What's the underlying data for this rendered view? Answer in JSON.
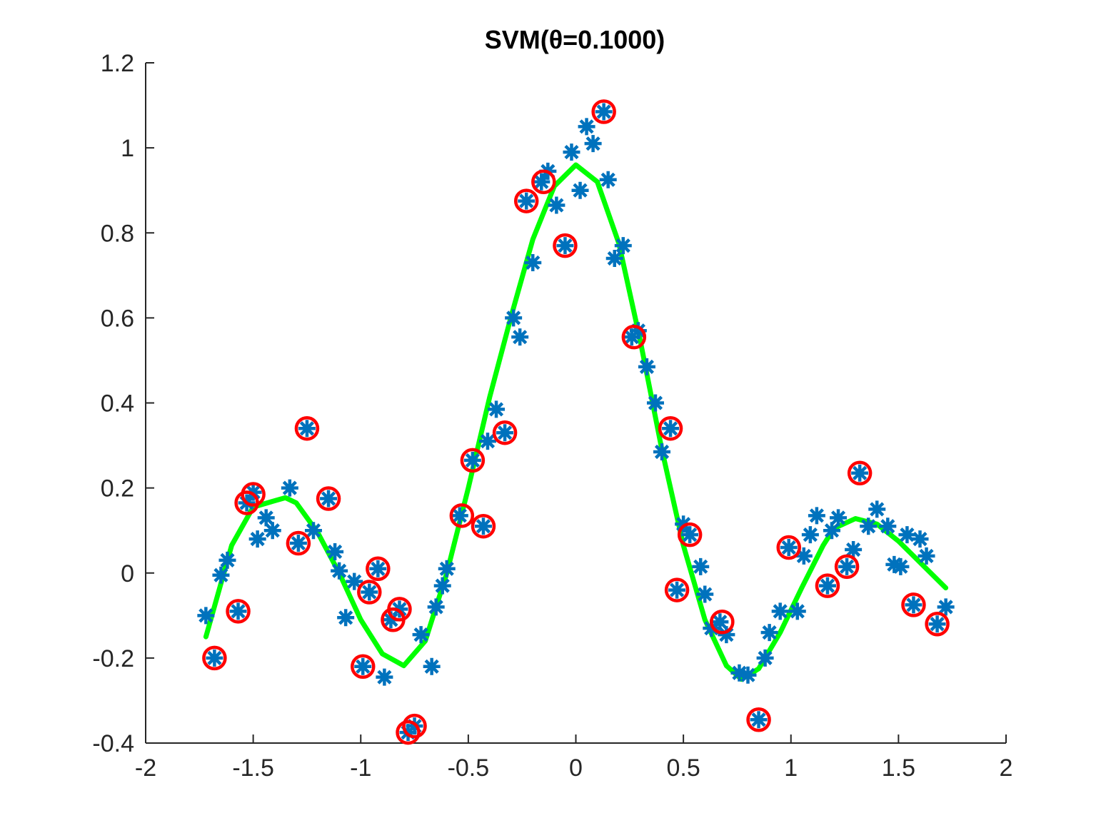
{
  "chart_data": {
    "type": "scatter",
    "title": "SVM(θ=0.1000)",
    "xlabel": "",
    "ylabel": "",
    "xlim": [
      -2,
      2
    ],
    "ylim": [
      -0.4,
      1.2
    ],
    "xticks": [
      -2,
      -1.5,
      -1,
      -0.5,
      0,
      0.5,
      1,
      1.5,
      2
    ],
    "xtick_labels": [
      "-2",
      "-1.5",
      "-1",
      "-0.5",
      "0",
      "0.5",
      "1",
      "1.5",
      "2"
    ],
    "yticks": [
      -0.4,
      -0.2,
      0,
      0.2,
      0.4,
      0.6,
      0.8,
      1,
      1.2
    ],
    "ytick_labels": [
      "-0.4",
      "-0.2",
      "0",
      "0.2",
      "0.4",
      "0.6",
      "0.8",
      "1",
      "1.2"
    ],
    "grid": false,
    "colors": {
      "data_points": "#0072BD",
      "support_vectors": "#FF0000",
      "fit_curve": "#00FF00",
      "axes": "#262626"
    },
    "series": [
      {
        "marker": "asterisk",
        "points": [
          [
            -1.72,
            -0.1
          ],
          [
            -1.68,
            -0.2
          ],
          [
            -1.65,
            -0.005
          ],
          [
            -1.62,
            0.03
          ],
          [
            -1.57,
            -0.09
          ],
          [
            -1.53,
            0.165
          ],
          [
            -1.5,
            0.19
          ],
          [
            -1.48,
            0.08
          ],
          [
            -1.44,
            0.13
          ],
          [
            -1.41,
            0.1
          ],
          [
            -1.33,
            0.2
          ],
          [
            -1.29,
            0.07
          ],
          [
            -1.25,
            0.34
          ],
          [
            -1.22,
            0.1
          ],
          [
            -1.15,
            0.175
          ],
          [
            -1.12,
            0.05
          ],
          [
            -1.1,
            0.005
          ],
          [
            -1.07,
            -0.105
          ],
          [
            -1.03,
            -0.02
          ],
          [
            -0.99,
            -0.22
          ],
          [
            -0.96,
            -0.045
          ],
          [
            -0.92,
            0.01
          ],
          [
            -0.89,
            -0.245
          ],
          [
            -0.86,
            -0.11
          ],
          [
            -0.82,
            -0.085
          ],
          [
            -0.78,
            -0.375
          ],
          [
            -0.75,
            -0.36
          ],
          [
            -0.72,
            -0.145
          ],
          [
            -0.67,
            -0.22
          ],
          [
            -0.65,
            -0.08
          ],
          [
            -0.62,
            -0.03
          ],
          [
            -0.6,
            0.01
          ],
          [
            -0.54,
            0.135
          ],
          [
            -0.48,
            0.265
          ],
          [
            -0.43,
            0.11
          ],
          [
            -0.41,
            0.31
          ],
          [
            -0.37,
            0.385
          ],
          [
            -0.33,
            0.33
          ],
          [
            -0.29,
            0.6
          ],
          [
            -0.26,
            0.555
          ],
          [
            -0.23,
            0.875
          ],
          [
            -0.2,
            0.73
          ],
          [
            -0.16,
            0.92
          ],
          [
            -0.13,
            0.945
          ],
          [
            -0.09,
            0.865
          ],
          [
            -0.05,
            0.77
          ],
          [
            -0.02,
            0.99
          ],
          [
            0.02,
            0.9
          ],
          [
            0.05,
            1.05
          ],
          [
            0.08,
            1.01
          ],
          [
            0.13,
            1.085
          ],
          [
            0.15,
            0.925
          ],
          [
            0.18,
            0.74
          ],
          [
            0.22,
            0.77
          ],
          [
            0.26,
            0.555
          ],
          [
            0.29,
            0.57
          ],
          [
            0.33,
            0.485
          ],
          [
            0.37,
            0.4
          ],
          [
            0.4,
            0.285
          ],
          [
            0.44,
            0.34
          ],
          [
            0.47,
            -0.04
          ],
          [
            0.5,
            0.115
          ],
          [
            0.53,
            0.09
          ],
          [
            0.58,
            0.015
          ],
          [
            0.6,
            -0.05
          ],
          [
            0.63,
            -0.13
          ],
          [
            0.67,
            -0.115
          ],
          [
            0.7,
            -0.145
          ],
          [
            0.76,
            -0.235
          ],
          [
            0.8,
            -0.24
          ],
          [
            0.85,
            -0.345
          ],
          [
            0.88,
            -0.2
          ],
          [
            0.9,
            -0.14
          ],
          [
            0.95,
            -0.09
          ],
          [
            0.99,
            0.06
          ],
          [
            1.03,
            -0.09
          ],
          [
            1.06,
            0.04
          ],
          [
            1.09,
            0.09
          ],
          [
            1.12,
            0.135
          ],
          [
            1.17,
            -0.03
          ],
          [
            1.19,
            0.1
          ],
          [
            1.22,
            0.13
          ],
          [
            1.26,
            0.015
          ],
          [
            1.29,
            0.055
          ],
          [
            1.32,
            0.235
          ],
          [
            1.36,
            0.11
          ],
          [
            1.4,
            0.15
          ],
          [
            1.45,
            0.11
          ],
          [
            1.48,
            0.02
          ],
          [
            1.51,
            0.015
          ],
          [
            1.54,
            0.09
          ],
          [
            1.57,
            -0.075
          ],
          [
            1.6,
            0.08
          ],
          [
            1.63,
            0.04
          ],
          [
            1.68,
            -0.12
          ],
          [
            1.72,
            -0.08
          ]
        ]
      },
      {
        "marker": "circle",
        "points": [
          [
            -1.68,
            -0.2
          ],
          [
            -1.57,
            -0.09
          ],
          [
            -1.53,
            0.165
          ],
          [
            -1.5,
            0.185
          ],
          [
            -1.29,
            0.07
          ],
          [
            -1.25,
            0.34
          ],
          [
            -1.15,
            0.175
          ],
          [
            -0.99,
            -0.22
          ],
          [
            -0.96,
            -0.045
          ],
          [
            -0.92,
            0.01
          ],
          [
            -0.85,
            -0.11
          ],
          [
            -0.82,
            -0.085
          ],
          [
            -0.78,
            -0.375
          ],
          [
            -0.75,
            -0.36
          ],
          [
            -0.53,
            0.135
          ],
          [
            -0.48,
            0.265
          ],
          [
            -0.43,
            0.11
          ],
          [
            -0.33,
            0.33
          ],
          [
            -0.23,
            0.875
          ],
          [
            -0.15,
            0.92
          ],
          [
            -0.05,
            0.77
          ],
          [
            0.13,
            1.085
          ],
          [
            0.27,
            0.555
          ],
          [
            0.44,
            0.34
          ],
          [
            0.47,
            -0.04
          ],
          [
            0.53,
            0.09
          ],
          [
            0.68,
            -0.115
          ],
          [
            0.85,
            -0.345
          ],
          [
            0.99,
            0.06
          ],
          [
            1.17,
            -0.03
          ],
          [
            1.26,
            0.015
          ],
          [
            1.32,
            0.235
          ],
          [
            1.57,
            -0.075
          ],
          [
            1.68,
            -0.12
          ]
        ]
      },
      {
        "marker": "line",
        "curve": [
          [
            -1.72,
            -0.15
          ],
          [
            -1.65,
            -0.025
          ],
          [
            -1.6,
            0.065
          ],
          [
            -1.5,
            0.155
          ],
          [
            -1.4,
            0.17
          ],
          [
            -1.35,
            0.177
          ],
          [
            -1.3,
            0.165
          ],
          [
            -1.2,
            0.095
          ],
          [
            -1.1,
            0.0
          ],
          [
            -1.0,
            -0.11
          ],
          [
            -0.9,
            -0.19
          ],
          [
            -0.8,
            -0.218
          ],
          [
            -0.7,
            -0.16
          ],
          [
            -0.6,
            0.0
          ],
          [
            -0.5,
            0.2
          ],
          [
            -0.4,
            0.415
          ],
          [
            -0.3,
            0.605
          ],
          [
            -0.2,
            0.785
          ],
          [
            -0.1,
            0.91
          ],
          [
            0.0,
            0.96
          ],
          [
            0.1,
            0.92
          ],
          [
            0.2,
            0.775
          ],
          [
            0.3,
            0.545
          ],
          [
            0.4,
            0.29
          ],
          [
            0.5,
            0.065
          ],
          [
            0.6,
            -0.11
          ],
          [
            0.7,
            -0.218
          ],
          [
            0.77,
            -0.25
          ],
          [
            0.85,
            -0.225
          ],
          [
            0.95,
            -0.14
          ],
          [
            1.05,
            -0.035
          ],
          [
            1.15,
            0.065
          ],
          [
            1.2,
            0.105
          ],
          [
            1.3,
            0.128
          ],
          [
            1.4,
            0.115
          ],
          [
            1.5,
            0.075
          ],
          [
            1.6,
            0.025
          ],
          [
            1.72,
            -0.035
          ]
        ]
      }
    ]
  }
}
